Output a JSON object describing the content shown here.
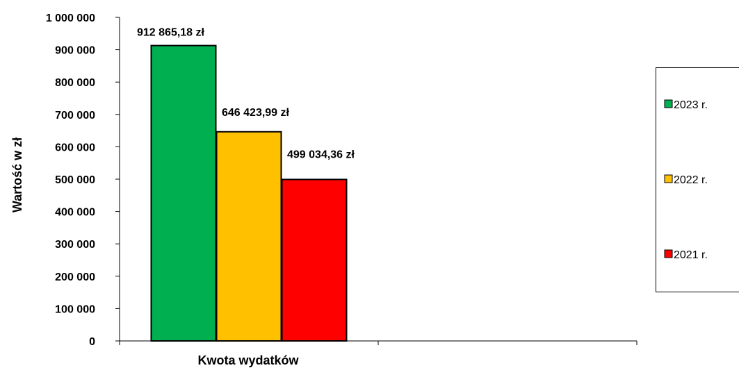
{
  "chart_data": {
    "type": "bar",
    "categories": [
      "Kwota wydatków"
    ],
    "series": [
      {
        "name": "2023 r.",
        "values": [
          912865.18
        ],
        "color": "#00b050",
        "label": "912 865,18 zł"
      },
      {
        "name": "2022 r.",
        "values": [
          646423.99
        ],
        "color": "#ffc000",
        "label": "646 423,99 zł"
      },
      {
        "name": "2021 r.",
        "values": [
          499034.36
        ],
        "color": "#ff0000",
        "label": "499 034,36 zł"
      }
    ],
    "title": "",
    "xlabel": "Kwota wydatków",
    "ylabel": "Wartość w zł",
    "ylim": [
      0,
      1000000
    ],
    "yticks": [
      0,
      100000,
      200000,
      300000,
      400000,
      500000,
      600000,
      700000,
      800000,
      900000,
      1000000
    ],
    "ytick_labels": [
      "0",
      "100 000",
      "200 000",
      "300 000",
      "400 000",
      "500 000",
      "600 000",
      "700 000",
      "800 000",
      "900 000",
      "1 000 000"
    ],
    "grid": false,
    "legend_position": "right"
  }
}
